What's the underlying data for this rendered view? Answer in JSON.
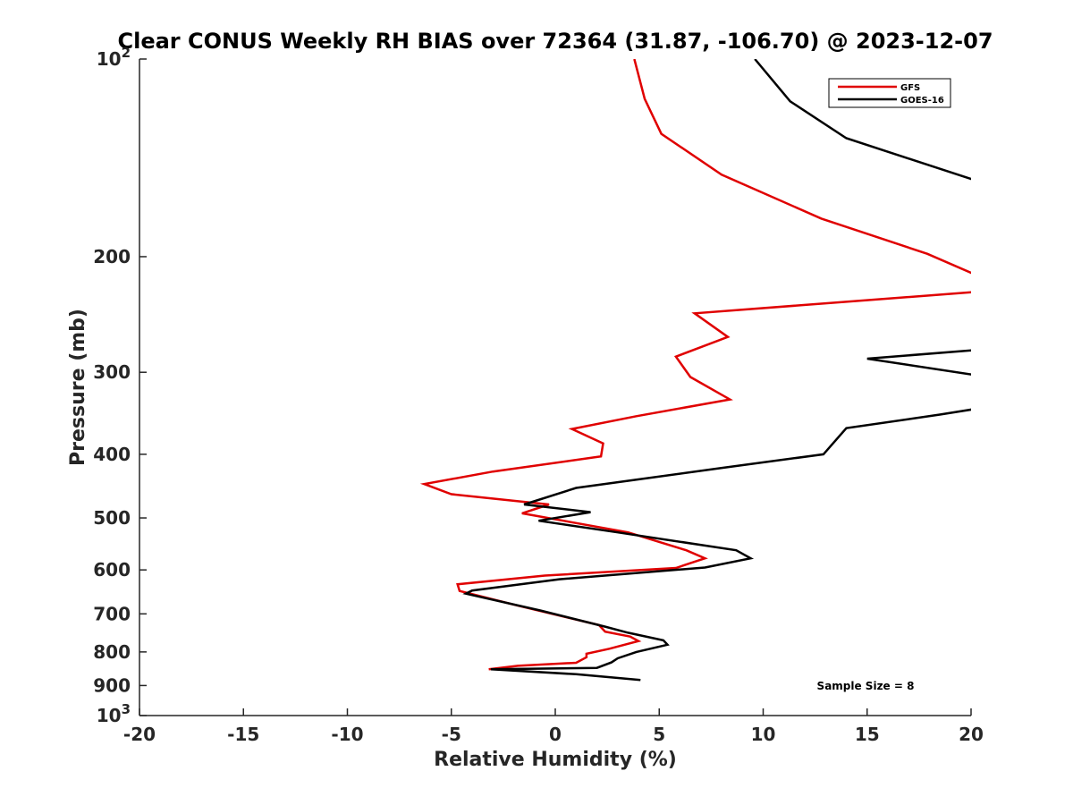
{
  "chart_data": {
    "type": "line",
    "title": "Clear CONUS Weekly RH BIAS over 72364 (31.87, -106.70) @ 2023-12-07",
    "xlabel": "Relative Humidity (%)",
    "ylabel": "Pressure (mb)",
    "xlim": [
      -20,
      20
    ],
    "ylim": [
      100,
      1000
    ],
    "y_scale": "log",
    "y_reversed": true,
    "x_ticks": [
      "-20",
      "-15",
      "-10",
      "-5",
      "0",
      "5",
      "10",
      "15",
      "20"
    ],
    "y_ticks": [
      {
        "value": 100,
        "base": "10",
        "exp": "2"
      },
      {
        "value": 200,
        "label": "200"
      },
      {
        "value": 300,
        "label": "300"
      },
      {
        "value": 400,
        "label": "400"
      },
      {
        "value": 500,
        "label": "500"
      },
      {
        "value": 600,
        "label": "600"
      },
      {
        "value": 700,
        "label": "700"
      },
      {
        "value": 800,
        "label": "800"
      },
      {
        "value": 900,
        "label": "900"
      },
      {
        "value": 1000,
        "base": "10",
        "exp": "3"
      }
    ],
    "grid": false,
    "legend_position": "top-right",
    "annotation": "Sample Size = 8",
    "series": [
      {
        "name": "GFS",
        "color": "#e00000",
        "points": [
          [
            3.8,
            100
          ],
          [
            4.3,
            115
          ],
          [
            5.1,
            130
          ],
          [
            8.0,
            150
          ],
          [
            12.8,
            175
          ],
          [
            17.9,
            198
          ],
          [
            20.5,
            215
          ],
          [
            20.5,
            226
          ],
          [
            6.7,
            244
          ],
          [
            8.3,
            265
          ],
          [
            5.8,
            284
          ],
          [
            6.5,
            305
          ],
          [
            8.4,
            330
          ],
          [
            3.9,
            350
          ],
          [
            0.8,
            366
          ],
          [
            2.3,
            385
          ],
          [
            2.2,
            403
          ],
          [
            -3.0,
            425
          ],
          [
            -6.3,
            444
          ],
          [
            -5.0,
            460
          ],
          [
            -0.3,
            477
          ],
          [
            -1.6,
            492
          ],
          [
            3.5,
            526
          ],
          [
            6.3,
            560
          ],
          [
            7.2,
            576
          ],
          [
            5.8,
            596
          ],
          [
            -0.5,
            612
          ],
          [
            -4.7,
            631
          ],
          [
            -4.6,
            646
          ],
          [
            -1.8,
            680
          ],
          [
            2.1,
            728
          ],
          [
            2.4,
            745
          ],
          [
            3.6,
            758
          ],
          [
            4.0,
            770
          ],
          [
            2.6,
            791
          ],
          [
            1.5,
            805
          ],
          [
            1.5,
            815
          ],
          [
            1.0,
            831
          ],
          [
            -1.8,
            840
          ],
          [
            -3.2,
            850
          ]
        ]
      },
      {
        "name": "GOES-16",
        "color": "#000000",
        "points": [
          [
            9.6,
            100
          ],
          [
            11.3,
            116
          ],
          [
            14.0,
            132
          ],
          [
            20.2,
            153
          ],
          [
            20.5,
            277
          ],
          [
            15.0,
            286
          ],
          [
            20.5,
            304
          ],
          [
            20.5,
            340
          ],
          [
            18.5,
            348
          ],
          [
            14.0,
            365
          ],
          [
            12.9,
            400
          ],
          [
            7.9,
            420
          ],
          [
            1.0,
            450
          ],
          [
            -1.5,
            477
          ],
          [
            1.7,
            490
          ],
          [
            -0.8,
            505
          ],
          [
            3.0,
            526
          ],
          [
            8.7,
            560
          ],
          [
            9.4,
            576
          ],
          [
            7.2,
            595
          ],
          [
            0.2,
            620
          ],
          [
            -4.0,
            645
          ],
          [
            -4.3,
            652
          ],
          [
            -0.7,
            692
          ],
          [
            2.4,
            732
          ],
          [
            3.5,
            748
          ],
          [
            5.2,
            768
          ],
          [
            5.4,
            780
          ],
          [
            3.9,
            800
          ],
          [
            3.0,
            818
          ],
          [
            2.7,
            830
          ],
          [
            2.0,
            846
          ],
          [
            -3.1,
            850
          ],
          [
            1.0,
            865
          ],
          [
            4.1,
            883
          ]
        ]
      }
    ]
  }
}
